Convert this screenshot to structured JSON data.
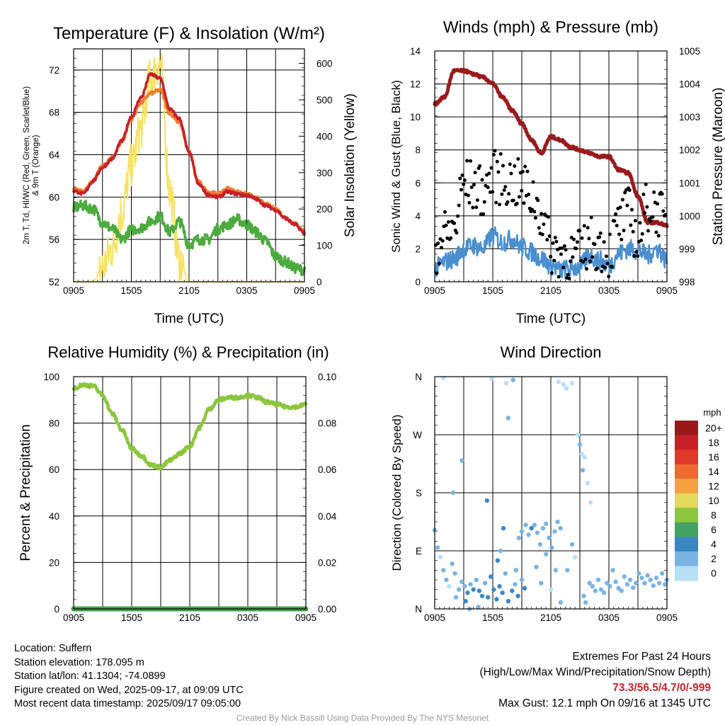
{
  "chart_data": [
    {
      "type": "line",
      "title": "Temperature (F) & Insolation (W/m²)",
      "xlabel": "Time (UTC)",
      "ylabel": "2m T, Td, HI/WC (Red, Green, Scarlet/Blue) & 9m T (Orange)",
      "y2label": "Solar Insolation (Yellow)",
      "x_ticks": [
        "0905",
        "1505",
        "2105",
        "0305",
        "0905"
      ],
      "ylim": [
        52,
        74
      ],
      "y_ticks": [
        52,
        56,
        60,
        64,
        68,
        72
      ],
      "y2lim": [
        0,
        640
      ],
      "y2_ticks": [
        0,
        100,
        200,
        300,
        400,
        500,
        600
      ],
      "x_hours": [
        0,
        1,
        2,
        3,
        4,
        5,
        6,
        7,
        8,
        9,
        10,
        11,
        12,
        13,
        14,
        15,
        16,
        17,
        18,
        19,
        20,
        21,
        22,
        23,
        24
      ],
      "series": [
        {
          "name": "2m T",
          "axis": "left",
          "color": "#c8202a",
          "values": [
            60.6,
            60.3,
            61.5,
            62.8,
            63.6,
            65.3,
            67.6,
            69.4,
            71.6,
            71.2,
            68.3,
            67.4,
            64.2,
            61.2,
            60.2,
            60.0,
            60.5,
            60.3,
            60.2,
            59.8,
            59.2,
            58.8,
            58.0,
            57.4,
            56.6
          ]
        },
        {
          "name": "9m T",
          "axis": "left",
          "color": "#ee7d2c",
          "values": [
            60.8,
            60.5,
            61.6,
            62.9,
            63.7,
            65.2,
            67.4,
            68.9,
            69.8,
            70.1,
            67.9,
            67.0,
            64.3,
            61.4,
            60.5,
            60.3,
            60.8,
            60.5,
            60.3,
            59.9,
            59.3,
            58.9,
            58.1,
            57.5,
            56.8
          ]
        },
        {
          "name": "Td",
          "axis": "left",
          "color": "#4cab3f",
          "values": [
            59.0,
            59.2,
            58.9,
            57.6,
            57.0,
            56.0,
            56.9,
            57.1,
            57.7,
            58.2,
            56.7,
            57.7,
            55.5,
            56.0,
            56.0,
            57.0,
            57.4,
            57.9,
            57.4,
            56.7,
            55.8,
            54.4,
            53.9,
            53.3,
            53.1
          ]
        },
        {
          "name": "Solar Insolation",
          "axis": "right",
          "color": "#f7e266",
          "values": [
            0,
            0,
            0,
            40,
            90,
            190,
            320,
            420,
            560,
            600,
            250,
            60,
            0,
            0,
            0,
            0,
            0,
            0,
            0,
            0,
            0,
            0,
            0,
            0,
            0
          ]
        }
      ]
    },
    {
      "type": "line",
      "title": "Winds (mph) & Pressure (mb)",
      "xlabel": "Time (UTC)",
      "ylabel": "Sonic Wind & Gust (Blue, Black)",
      "y2label": "Station Pressure (Maroon)",
      "x_ticks": [
        "0905",
        "1505",
        "2105",
        "0305",
        "0905"
      ],
      "ylim": [
        0,
        14
      ],
      "y_ticks": [
        0,
        2,
        4,
        6,
        8,
        10,
        12,
        14
      ],
      "y2lim": [
        998,
        1005
      ],
      "y2_ticks": [
        998,
        999,
        1000,
        1001,
        1002,
        1003,
        1004,
        1005
      ],
      "x_hours": [
        0,
        1,
        2,
        3,
        4,
        5,
        6,
        7,
        8,
        9,
        10,
        11,
        12,
        13,
        14,
        15,
        16,
        17,
        18,
        19,
        20,
        21,
        22,
        23,
        24
      ],
      "series": [
        {
          "name": "Sonic Wind",
          "axis": "left",
          "color": "#4a8fd0",
          "values": [
            0.8,
            1.2,
            1.4,
            2.0,
            2.2,
            2.0,
            2.8,
            2.4,
            2.6,
            2.1,
            1.8,
            1.4,
            1.0,
            0.7,
            0.8,
            0.9,
            1.6,
            1.3,
            1.0,
            1.7,
            2.0,
            1.9,
            1.6,
            2.0,
            1.3
          ]
        },
        {
          "name": "Gust",
          "axis": "left",
          "color": "#000000",
          "values": [
            2.0,
            2.8,
            3.2,
            6.0,
            5.8,
            5.5,
            6.4,
            6.2,
            6.0,
            5.8,
            5.2,
            4.2,
            2.0,
            1.8,
            1.6,
            1.6,
            2.4,
            2.2,
            1.8,
            3.4,
            4.2,
            2.6,
            4.6,
            4.4,
            3.2
          ]
        },
        {
          "name": "Station Pressure",
          "axis": "right",
          "color": "#9a1a1c",
          "values": [
            1003.4,
            1003.6,
            1004.4,
            1004.4,
            1004.3,
            1004.2,
            1004.0,
            1003.6,
            1003.2,
            1002.8,
            1002.3,
            1001.9,
            1002.4,
            1002.3,
            1002.1,
            1002.0,
            1001.9,
            1001.8,
            1001.8,
            1001.4,
            1001.3,
            1000.6,
            999.8,
            999.8,
            999.7
          ]
        }
      ]
    },
    {
      "type": "line",
      "title": "Relative Humidity (%) & Precipitation (in)",
      "xlabel": "",
      "ylabel": "Percent & Precipitation",
      "x_ticks": [
        "0905",
        "1505",
        "2105",
        "0305",
        "0905"
      ],
      "ylim": [
        0,
        100
      ],
      "y_ticks": [
        0,
        20,
        40,
        60,
        80,
        100
      ],
      "y2lim": [
        0,
        0.1
      ],
      "y2_ticks": [
        "0.00",
        "0.02",
        "0.04",
        "0.06",
        "0.08",
        "0.10"
      ],
      "x_hours": [
        0,
        1,
        2,
        3,
        4,
        5,
        6,
        7,
        8,
        9,
        10,
        11,
        12,
        13,
        14,
        15,
        16,
        17,
        18,
        19,
        20,
        21,
        22,
        23,
        24
      ],
      "series": [
        {
          "name": "Relative Humidity",
          "axis": "left",
          "color": "#8cc63e",
          "values": [
            95,
            96.5,
            96,
            92,
            84,
            77,
            69,
            66,
            62,
            61,
            64,
            67,
            70,
            78,
            86,
            90,
            91,
            91,
            92,
            91,
            89,
            88,
            87,
            87,
            88
          ]
        },
        {
          "name": "Precipitation",
          "axis": "right",
          "color": "#43a047",
          "values": [
            0,
            0,
            0,
            0,
            0,
            0,
            0,
            0,
            0,
            0,
            0,
            0,
            0,
            0,
            0,
            0,
            0,
            0,
            0,
            0,
            0,
            0,
            0,
            0,
            0
          ]
        }
      ]
    },
    {
      "type": "scatter",
      "title": "Wind Direction",
      "xlabel": "",
      "ylabel": "Direction (Colored By Speed)",
      "x_ticks": [
        "0905",
        "1505",
        "2105",
        "0305",
        "0905"
      ],
      "y_ticks": [
        "N",
        "E",
        "S",
        "W",
        "N"
      ],
      "ylim": [
        0,
        360
      ],
      "colorbar_title": "mph",
      "colorbar_labels": [
        "20+",
        "18",
        "16",
        "14",
        "12",
        "10",
        "8",
        "6",
        "4",
        "2",
        "0"
      ],
      "colorbar_colors": [
        "#9a1a1c",
        "#c8202a",
        "#e0372b",
        "#ee6a2e",
        "#f6a140",
        "#e3d95a",
        "#8cc63e",
        "#43a366",
        "#3a86c6",
        "#7ab4e2",
        "#b8e0f6"
      ],
      "points": [
        {
          "h": 0.0,
          "dir": 122,
          "spd": 1
        },
        {
          "h": 0.3,
          "dir": 95,
          "spd": 1
        },
        {
          "h": 0.6,
          "dir": 80,
          "spd": 0.5
        },
        {
          "h": 0.9,
          "dir": 60,
          "spd": 1
        },
        {
          "h": 1.2,
          "dir": 45,
          "spd": 1.5
        },
        {
          "h": 1.5,
          "dir": 35,
          "spd": 0.5
        },
        {
          "h": 1.8,
          "dir": 70,
          "spd": 1
        },
        {
          "h": 2.1,
          "dir": 55,
          "spd": 1.5
        },
        {
          "h": 2.5,
          "dir": 30,
          "spd": 2
        },
        {
          "h": 2.8,
          "dir": 42,
          "spd": 2.5
        },
        {
          "h": 3.1,
          "dir": 35,
          "spd": 2.5
        },
        {
          "h": 3.4,
          "dir": 25,
          "spd": 3
        },
        {
          "h": 3.7,
          "dir": 38,
          "spd": 2
        },
        {
          "h": 4.0,
          "dir": 30,
          "spd": 3
        },
        {
          "h": 4.3,
          "dir": 45,
          "spd": 2
        },
        {
          "h": 4.6,
          "dir": 28,
          "spd": 3.5
        },
        {
          "h": 4.9,
          "dir": 20,
          "spd": 4
        },
        {
          "h": 5.2,
          "dir": 40,
          "spd": 2.5
        },
        {
          "h": 5.5,
          "dir": 18,
          "spd": 3.5
        },
        {
          "h": 5.8,
          "dir": 50,
          "spd": 3
        },
        {
          "h": 6.1,
          "dir": 30,
          "spd": 3.5
        },
        {
          "h": 6.4,
          "dir": 15,
          "spd": 4
        },
        {
          "h": 6.7,
          "dir": 35,
          "spd": 3
        },
        {
          "h": 7.0,
          "dir": 25,
          "spd": 3.5
        },
        {
          "h": 7.3,
          "dir": 55,
          "spd": 2.5
        },
        {
          "h": 7.6,
          "dir": 12,
          "spd": 4
        },
        {
          "h": 8.0,
          "dir": 28,
          "spd": 3
        },
        {
          "h": 8.3,
          "dir": 38,
          "spd": 2.5
        },
        {
          "h": 8.6,
          "dir": 20,
          "spd": 3.5
        },
        {
          "h": 9.0,
          "dir": 45,
          "spd": 2.5
        },
        {
          "h": 9.3,
          "dir": 32,
          "spd": 3
        },
        {
          "h": 5.4,
          "dir": 168,
          "spd": 4
        },
        {
          "h": 6.5,
          "dir": 75,
          "spd": 3
        },
        {
          "h": 6.8,
          "dir": 90,
          "spd": 2
        },
        {
          "h": 7.1,
          "dir": 125,
          "spd": 3
        },
        {
          "h": 7.4,
          "dir": 350,
          "spd": 0.5
        },
        {
          "h": 7.6,
          "dir": 296,
          "spd": 2.5
        },
        {
          "h": 8.1,
          "dir": 355,
          "spd": 1
        },
        {
          "h": 8.4,
          "dir": 60,
          "spd": 1.5
        },
        {
          "h": 8.7,
          "dir": 110,
          "spd": 2
        },
        {
          "h": 9.0,
          "dir": 120,
          "spd": 1.5
        },
        {
          "h": 9.4,
          "dir": 130,
          "spd": 2
        },
        {
          "h": 9.7,
          "dir": 115,
          "spd": 2.5
        },
        {
          "h": 10.0,
          "dir": 125,
          "spd": 3
        },
        {
          "h": 10.3,
          "dir": 130,
          "spd": 2.5
        },
        {
          "h": 10.6,
          "dir": 118,
          "spd": 2
        },
        {
          "h": 10.9,
          "dir": 100,
          "spd": 2
        },
        {
          "h": 11.2,
          "dir": 125,
          "spd": 2.5
        },
        {
          "h": 11.5,
          "dir": 132,
          "spd": 2
        },
        {
          "h": 11.8,
          "dir": 110,
          "spd": 2
        },
        {
          "h": 12.1,
          "dir": 95,
          "spd": 1.5
        },
        {
          "h": 12.4,
          "dir": 120,
          "spd": 1
        },
        {
          "h": 12.7,
          "dir": 135,
          "spd": 2
        },
        {
          "h": 13.0,
          "dir": 125,
          "spd": 1.5
        },
        {
          "h": 10.5,
          "dir": 65,
          "spd": 1
        },
        {
          "h": 11.0,
          "dir": 40,
          "spd": 1.5
        },
        {
          "h": 11.5,
          "dir": 85,
          "spd": 1
        },
        {
          "h": 12.0,
          "dir": 30,
          "spd": 0.5
        },
        {
          "h": 12.5,
          "dir": 60,
          "spd": 1
        },
        {
          "h": 12.8,
          "dir": 352,
          "spd": 0.5
        },
        {
          "h": 13.3,
          "dir": 348,
          "spd": 0.5
        },
        {
          "h": 13.6,
          "dir": 342,
          "spd": 0.5
        },
        {
          "h": 14.2,
          "dir": 350,
          "spd": 0.5
        },
        {
          "h": 14.8,
          "dir": 270,
          "spd": 0.5
        },
        {
          "h": 15.0,
          "dir": 255,
          "spd": 1
        },
        {
          "h": 15.2,
          "dir": 240,
          "spd": 0.5
        },
        {
          "h": 15.5,
          "dir": 235,
          "spd": 0.5
        },
        {
          "h": 15.8,
          "dir": 195,
          "spd": 0.5
        },
        {
          "h": 16.1,
          "dir": 165,
          "spd": 0.5
        },
        {
          "h": 15.3,
          "dir": 215,
          "spd": 1
        },
        {
          "h": 14.2,
          "dir": 100,
          "spd": 1
        },
        {
          "h": 14.5,
          "dir": 80,
          "spd": 0.5
        },
        {
          "h": 13.7,
          "dir": 60,
          "spd": 1
        },
        {
          "h": 13.0,
          "dir": 10,
          "spd": 1
        },
        {
          "h": 15.4,
          "dir": 20,
          "spd": 1
        },
        {
          "h": 15.6,
          "dir": 10,
          "spd": 1
        },
        {
          "h": 16.0,
          "dir": 40,
          "spd": 1.5
        },
        {
          "h": 16.3,
          "dir": 35,
          "spd": 2
        },
        {
          "h": 16.6,
          "dir": 28,
          "spd": 2
        },
        {
          "h": 16.9,
          "dir": 45,
          "spd": 2
        },
        {
          "h": 17.2,
          "dir": 30,
          "spd": 2.5
        },
        {
          "h": 17.5,
          "dir": 25,
          "spd": 2
        },
        {
          "h": 17.8,
          "dir": 40,
          "spd": 2
        },
        {
          "h": 18.1,
          "dir": 35,
          "spd": 2.5
        },
        {
          "h": 18.4,
          "dir": 60,
          "spd": 1
        },
        {
          "h": 18.7,
          "dir": 42,
          "spd": 2
        },
        {
          "h": 19.0,
          "dir": 32,
          "spd": 2
        },
        {
          "h": 19.3,
          "dir": 28,
          "spd": 2.5
        },
        {
          "h": 19.6,
          "dir": 50,
          "spd": 1.5
        },
        {
          "h": 19.9,
          "dir": 38,
          "spd": 2
        },
        {
          "h": 20.2,
          "dir": 45,
          "spd": 1.5
        },
        {
          "h": 20.5,
          "dir": 33,
          "spd": 2
        },
        {
          "h": 20.8,
          "dir": 40,
          "spd": 2
        },
        {
          "h": 21.1,
          "dir": 55,
          "spd": 1
        },
        {
          "h": 21.4,
          "dir": 48,
          "spd": 1.5
        },
        {
          "h": 21.7,
          "dir": 40,
          "spd": 2
        },
        {
          "h": 22.0,
          "dir": 52,
          "spd": 1
        },
        {
          "h": 22.3,
          "dir": 45,
          "spd": 1.5
        },
        {
          "h": 22.6,
          "dir": 36,
          "spd": 2
        },
        {
          "h": 22.9,
          "dir": 48,
          "spd": 1
        },
        {
          "h": 23.2,
          "dir": 40,
          "spd": 1.5
        },
        {
          "h": 23.5,
          "dir": 55,
          "spd": 1
        },
        {
          "h": 23.8,
          "dir": 38,
          "spd": 2
        },
        {
          "h": 24.0,
          "dir": 45,
          "spd": 1
        },
        {
          "h": 0.9,
          "dir": 358,
          "spd": 0.5
        },
        {
          "h": 2.8,
          "dir": 230,
          "spd": 1.5
        },
        {
          "h": 1.9,
          "dir": 180,
          "spd": 1
        },
        {
          "h": 3.6,
          "dir": 0,
          "spd": 1
        },
        {
          "h": 5.9,
          "dir": 357,
          "spd": 0.5
        },
        {
          "h": 4.5,
          "dir": 3,
          "spd": 2
        },
        {
          "h": 3.2,
          "dir": 12,
          "spd": 3
        },
        {
          "h": 2.2,
          "dir": 18,
          "spd": 2
        }
      ]
    }
  ],
  "footer": {
    "location": "Location: Suffern",
    "elevation": "Station elevation: 178.095 m",
    "latlon": "Station lat/lon: 41.1304; -74.0899",
    "created": "Figure created on Wed, 2025-09-17, at 09:09 UTC",
    "recent": "Most recent data timestamp: 2025/09/17 09:05:00",
    "extremes_title": "Extremes For Past 24 Hours",
    "extremes_desc": "(High/Low/Max Wind/Precipitation/Snow Depth)",
    "extremes_values": "73.3/56.5/4.7/0/-999",
    "max_gust": "Max Gust: 12.1 mph On 09/16 at 1345 UTC",
    "credit": "Created By Nick Bassill Using Data Provided By The NYS Mesonet"
  }
}
